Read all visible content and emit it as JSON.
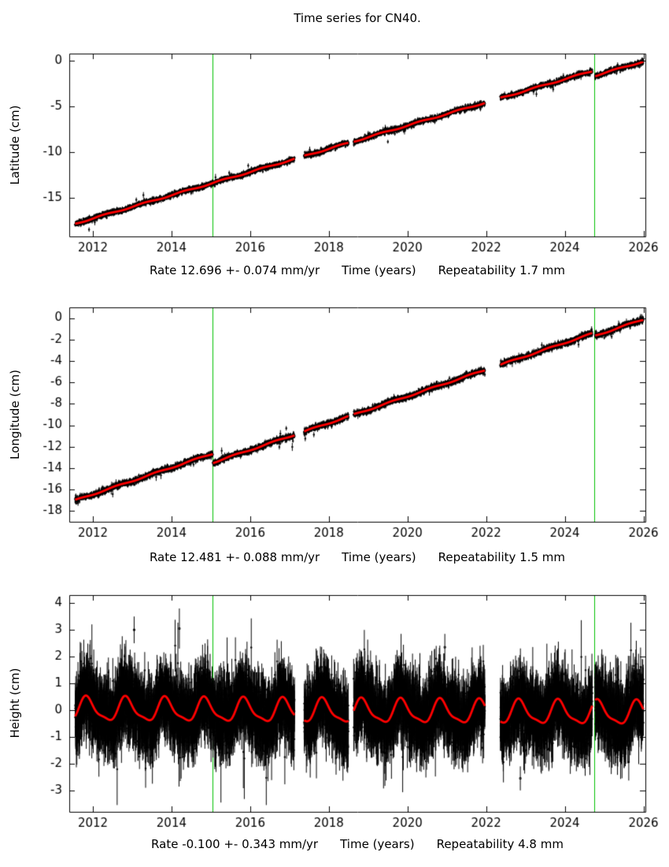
{
  "title": "Time series for CN40.",
  "colors": {
    "background": "#ffffff",
    "points": "#000000",
    "model_line": "#ff0000",
    "event_line": "#00c000",
    "axis": "#000000"
  },
  "chart_data": [
    {
      "name": "latitude",
      "type": "scatter",
      "ylabel": "Latitude (cm)",
      "xlabel": "Time (years)",
      "rate_label": "Rate 12.696 +- 0.074 mm/yr",
      "repeatability_label": "Repeatability 1.7 mm",
      "rate_mm_per_yr": 12.696,
      "rate_sigma_mm_per_yr": 0.074,
      "repeatability_mm": 1.7,
      "xlim": [
        2011.4,
        2026.05
      ],
      "ylim": [
        -19.2,
        0.8
      ],
      "xticks": [
        2012,
        2014,
        2016,
        2018,
        2020,
        2022,
        2024,
        2026
      ],
      "yticks": [
        0,
        -5,
        -10,
        -15
      ],
      "events": [
        2015.05,
        2024.75
      ],
      "data_start": 2011.55,
      "data_end": 2026.0,
      "dt": 0.0027,
      "gaps": [
        [
          2017.13,
          2017.37
        ],
        [
          2018.5,
          2018.63
        ],
        [
          2021.97,
          2022.36
        ],
        [
          2024.7,
          2024.77
        ]
      ],
      "model": {
        "t0": 2011.55,
        "intercept": -17.8,
        "slope_cm_per_yr": 1.2696,
        "offsets": [
          {
            "t": 2024.75,
            "dv": -0.6
          }
        ],
        "seasonal": [
          {
            "amp": 0.07,
            "period": 1,
            "phase": 0.3
          }
        ]
      },
      "noise": {
        "sigma": 0.13,
        "err_base": 0.12,
        "err_rand": 0.1,
        "outlier_prob": 0.012,
        "outlier_scale": 3
      },
      "outliers": [],
      "seed": 11
    },
    {
      "name": "longitude",
      "type": "scatter",
      "ylabel": "Longitude (cm)",
      "xlabel": "Time (years)",
      "rate_label": "Rate 12.481 +- 0.088 mm/yr",
      "repeatability_label": "Repeatability 1.5 mm",
      "rate_mm_per_yr": 12.481,
      "rate_sigma_mm_per_yr": 0.088,
      "repeatability_mm": 1.5,
      "xlim": [
        2011.4,
        2026.05
      ],
      "ylim": [
        -19.0,
        1.0
      ],
      "xticks": [
        2012,
        2014,
        2016,
        2018,
        2020,
        2022,
        2024,
        2026
      ],
      "yticks": [
        0,
        -2,
        -4,
        -6,
        -8,
        -10,
        -12,
        -14,
        -16,
        -18
      ],
      "events": [
        2015.05,
        2024.75
      ],
      "data_start": 2011.55,
      "data_end": 2026.0,
      "dt": 0.0027,
      "gaps": [
        [
          2017.13,
          2017.37
        ],
        [
          2018.5,
          2018.63
        ],
        [
          2021.97,
          2022.36
        ],
        [
          2024.7,
          2024.77
        ]
      ],
      "model": {
        "t0": 2011.55,
        "intercept": -17.0,
        "slope_cm_per_yr": 1.2481,
        "offsets": [
          {
            "t": 2015.05,
            "dv": -0.85
          },
          {
            "t": 2024.75,
            "dv": -0.3
          }
        ],
        "seasonal": [
          {
            "amp": 0.06,
            "period": 1,
            "phase": 0.6
          }
        ]
      },
      "noise": {
        "sigma": 0.12,
        "err_base": 0.12,
        "err_rand": 0.1,
        "outlier_prob": 0.012,
        "outlier_scale": 3
      },
      "outliers": [],
      "seed": 22
    },
    {
      "name": "height",
      "type": "scatter",
      "ylabel": "Height (cm)",
      "xlabel": "Time (years)",
      "rate_label": "Rate -0.100 +- 0.343 mm/yr",
      "repeatability_label": "Repeatability 4.8 mm",
      "rate_mm_per_yr": -0.1,
      "rate_sigma_mm_per_yr": 0.343,
      "repeatability_mm": 4.8,
      "xlim": [
        2011.4,
        2026.05
      ],
      "ylim": [
        -3.8,
        4.3
      ],
      "xticks": [
        2012,
        2014,
        2016,
        2018,
        2020,
        2022,
        2024,
        2026
      ],
      "yticks": [
        4,
        3,
        2,
        1,
        0,
        -1,
        -2,
        -3
      ],
      "events": [
        2015.05,
        2024.75
      ],
      "data_start": 2011.55,
      "data_end": 2026.0,
      "dt": 0.0019,
      "gaps": [
        [
          2017.13,
          2017.37
        ],
        [
          2018.5,
          2018.63
        ],
        [
          2021.97,
          2022.36
        ],
        [
          2024.7,
          2024.77
        ]
      ],
      "model": {
        "t0": 2011.55,
        "intercept": 0.02,
        "slope_cm_per_yr": -0.01,
        "offsets": [],
        "seasonal": [
          {
            "amp": 0.42,
            "period": 1,
            "phase": 0.85
          },
          {
            "amp": 0.12,
            "period": 0.5,
            "phase": 0.3
          }
        ]
      },
      "noise": {
        "sigma": 0.55,
        "err_base": 0.45,
        "err_rand": 0.45,
        "outlier_prob": 0.01,
        "outlier_scale": 2.2
      },
      "outliers": [
        {
          "t": 2013.05,
          "v": 3.0,
          "err": 0.5
        },
        {
          "t": 2014.2,
          "v": 3.05,
          "err": 0.75
        },
        {
          "t": 2020.95,
          "v": 2.35,
          "err": 0.5
        },
        {
          "t": 2022.87,
          "v": -2.55,
          "err": 0.45
        }
      ],
      "seed": 33
    }
  ]
}
